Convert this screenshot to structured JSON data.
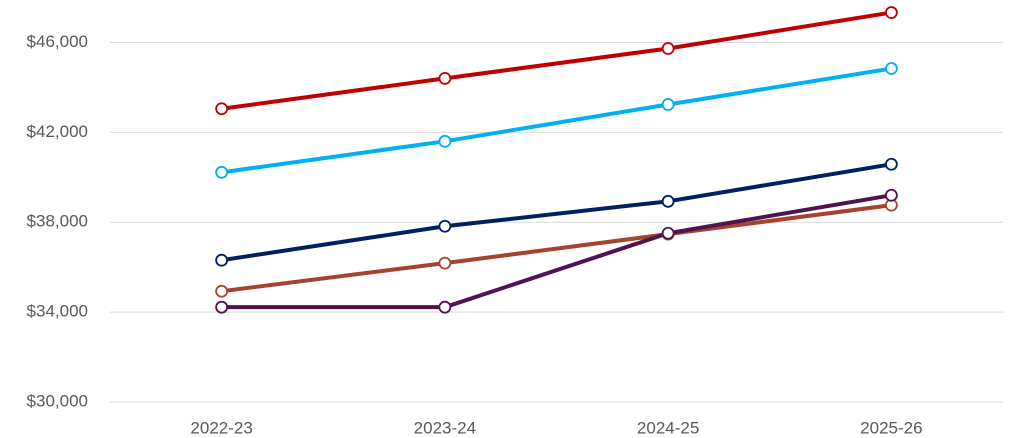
{
  "chart_data": {
    "type": "line",
    "categories": [
      "2022-23",
      "2023-24",
      "2024-25",
      "2025-26"
    ],
    "series": [
      {
        "color": "#c00000",
        "values": [
          43050,
          44400,
          45730,
          47330
        ]
      },
      {
        "color": "#00b0f0",
        "values": [
          40220,
          41600,
          43240,
          44840
        ]
      },
      {
        "color": "#002060",
        "values": [
          36310,
          37820,
          38930,
          40580
        ]
      },
      {
        "color": "#a5432f",
        "values": [
          34930,
          36180,
          37470,
          38760
        ]
      },
      {
        "color": "#4f1450",
        "values": [
          34220,
          34220,
          37510,
          39200
        ]
      }
    ],
    "ylim": [
      30000,
      47800
    ],
    "yticks": [
      {
        "value": 30000,
        "label": "$30,000"
      },
      {
        "value": 34000,
        "label": "$34,000"
      },
      {
        "value": 38000,
        "label": "$38,000"
      },
      {
        "value": 42000,
        "label": "$42,000"
      },
      {
        "value": 46000,
        "label": "$46,000"
      }
    ],
    "grid": true
  }
}
